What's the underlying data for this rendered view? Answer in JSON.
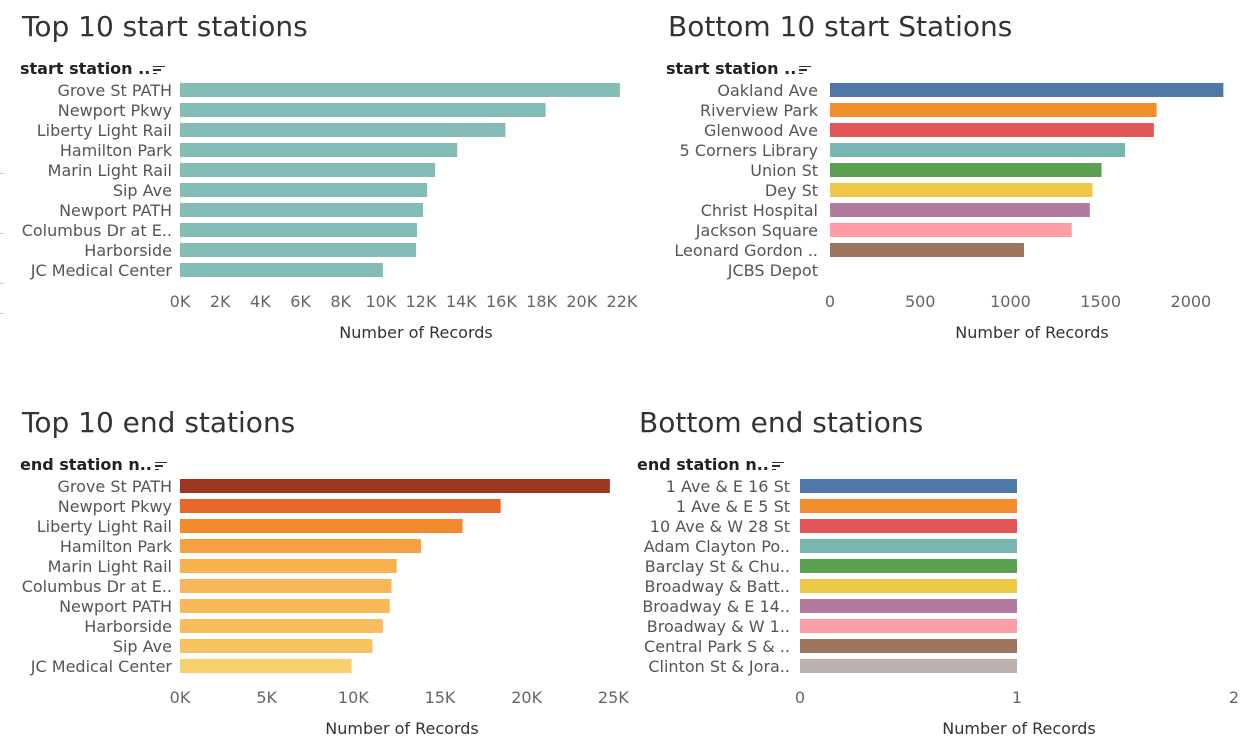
{
  "chart_data": [
    {
      "type": "bar",
      "title": "Top 10 start stations",
      "field_label": "start station ..",
      "xlabel": "Number of Records",
      "ylabel": "",
      "categories": [
        "Grove St PATH",
        "Newport Pkwy",
        "Liberty Light Rail",
        "Hamilton Park",
        "Marin Light Rail",
        "Sip Ave",
        "Newport PATH",
        "Columbus Dr at E..",
        "Harborside",
        "JC Medical Center"
      ],
      "values": [
        21900,
        18200,
        16200,
        13800,
        12700,
        12300,
        12100,
        11800,
        11750,
        10100
      ],
      "xlim": [
        0,
        22500
      ],
      "ticks": [
        0,
        2000,
        4000,
        6000,
        8000,
        10000,
        12000,
        14000,
        16000,
        18000,
        20000,
        22000
      ],
      "tick_labels": [
        "0K",
        "2K",
        "4K",
        "6K",
        "8K",
        "10K",
        "12K",
        "14K",
        "16K",
        "18K",
        "20K",
        "22K"
      ],
      "colors": [
        "#86bcb6"
      ],
      "grid": false
    },
    {
      "type": "bar",
      "title": "Bottom 10 start Stations",
      "field_label": "start station ..",
      "xlabel": "Number of Records",
      "ylabel": "",
      "categories": [
        "Oakland Ave",
        "Riverview Park",
        "Glenwood Ave",
        "5 Corners Library",
        "Union St",
        "Dey St",
        "Christ Hospital",
        "Jackson Square",
        "Leonard Gordon ..",
        "JCBS Depot"
      ],
      "values": [
        2180,
        1810,
        1795,
        1635,
        1505,
        1455,
        1440,
        1340,
        1075,
        0
      ],
      "xlim": [
        0,
        2250
      ],
      "ticks": [
        0,
        500,
        1000,
        1500,
        2000
      ],
      "tick_labels": [
        "0",
        "500",
        "1000",
        "1500",
        "2000"
      ],
      "colors": [
        "#4e79a7",
        "#f28e2b",
        "#e15759",
        "#76b7b2",
        "#59a14f",
        "#edc948",
        "#b07aa1",
        "#ff9da7",
        "#9c755f",
        "#bab0ac"
      ],
      "grid": false
    },
    {
      "type": "bar",
      "title": "Top 10 end stations",
      "field_label": "end station n..",
      "xlabel": "Number of Records",
      "ylabel": "",
      "categories": [
        "Grove St PATH",
        "Newport Pkwy",
        "Liberty Light Rail",
        "Hamilton Park",
        "Marin Light Rail",
        "Columbus Dr at E..",
        "Newport PATH",
        "Harborside",
        "Sip Ave",
        "JC Medical Center"
      ],
      "values": [
        24800,
        18500,
        16300,
        13900,
        12500,
        12200,
        12100,
        11700,
        11100,
        9900
      ],
      "xlim": [
        0,
        25500
      ],
      "ticks": [
        0,
        5000,
        10000,
        15000,
        20000,
        25000
      ],
      "tick_labels": [
        "0K",
        "5K",
        "10K",
        "15K",
        "20K",
        "25K"
      ],
      "colors": [
        "#9c3522",
        "#e8682a",
        "#f28a30",
        "#f6a041",
        "#f8b250",
        "#f9b657",
        "#f9b85a",
        "#f9bc5c",
        "#f8c35e",
        "#f5d06b"
      ],
      "grid": false
    },
    {
      "type": "bar",
      "title": "Bottom end stations",
      "field_label": "end station n..",
      "xlabel": "Number of Records",
      "ylabel": "",
      "categories": [
        "1 Ave & E 16 St",
        "1 Ave & E 5 St",
        "10 Ave & W 28 St",
        "Adam Clayton Po..",
        "Barclay St & Chu..",
        "Broadway & Batt..",
        "Broadway & E 14..",
        "Broadway & W 1..",
        "Central Park S & ..",
        "Clinton St & Jora.."
      ],
      "values": [
        1,
        1,
        1,
        1,
        1,
        1,
        1,
        1,
        1,
        1
      ],
      "xlim": [
        0,
        2
      ],
      "ticks": [
        0,
        1,
        2
      ],
      "tick_labels": [
        "0",
        "1",
        "2"
      ],
      "colors": [
        "#4e79a7",
        "#f28e2b",
        "#e15759",
        "#76b7b2",
        "#59a14f",
        "#edc948",
        "#b07aa1",
        "#ff9da7",
        "#9c755f",
        "#bab0ac"
      ],
      "grid": false
    }
  ]
}
